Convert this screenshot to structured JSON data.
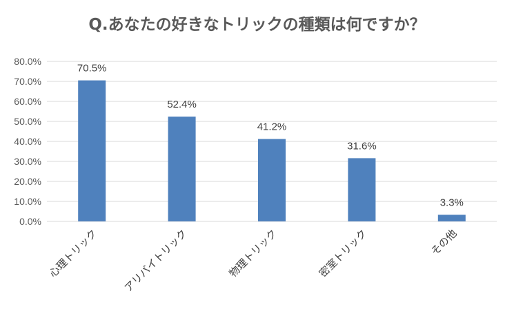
{
  "chart_data": {
    "type": "bar",
    "title": "Q.あなたの好きなトリックの種類は何ですか？",
    "categories": [
      "心理トリック",
      "アリバイトリック",
      "物理トリック",
      "密室トリック",
      "その他"
    ],
    "values": [
      70.5,
      52.4,
      41.2,
      31.6,
      3.3
    ],
    "data_labels": [
      "70.5%",
      "52.4%",
      "41.2%",
      "31.6%",
      "3.3%"
    ],
    "y_ticks": [
      "0.0%",
      "10.0%",
      "20.0%",
      "30.0%",
      "40.0%",
      "50.0%",
      "60.0%",
      "70.0%",
      "80.0%"
    ],
    "ylim": [
      0,
      80
    ],
    "grid": true,
    "bar_color": "#4f81bd",
    "grid_color": "#d9d9d9"
  }
}
